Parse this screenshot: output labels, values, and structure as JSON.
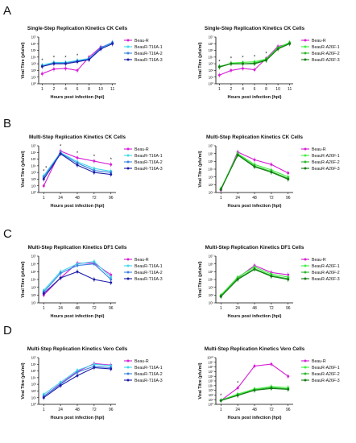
{
  "figure": {
    "panel_letters": [
      "A",
      "B",
      "C",
      "D"
    ]
  },
  "colors": {
    "beau_r": "#d61fd6",
    "t16a_1": "#3fd8ec",
    "t16a_2": "#3a84e0",
    "t16a_3": "#1c1ca8",
    "a26f_1": "#3ef03e",
    "a26f_2": "#27b827",
    "a26f_3": "#147a14"
  },
  "chart_data": [
    {
      "type": "line",
      "panel": "A",
      "side": "left",
      "title": "Single-Step Replication Kinetics CK Cells",
      "xlabel": "Hours post infection (hpi)",
      "ylabel": "Viral Titre (pfu/ml)",
      "categories": [
        "1",
        "2",
        "4",
        "6",
        "8",
        "10",
        "11"
      ],
      "log_scale": true,
      "ylim": [
        0,
        7
      ],
      "y_tick_labels": [
        "10⁰",
        "10¹",
        "10²",
        "10³",
        "10⁴",
        "10⁵",
        "10⁶",
        "10⁷"
      ],
      "annotation_markers": [
        "*",
        "*",
        "*",
        "*"
      ],
      "series": [
        {
          "name": "Beau-R",
          "color_key": "beau_r",
          "values": [
            1.5,
            2.2,
            2.3,
            2.0,
            4.0,
            5.5,
            6.0
          ]
        },
        {
          "name": "BeauR-T16A-1",
          "color_key": "t16a_1",
          "values": [
            2.8,
            3.2,
            3.2,
            3.5,
            3.8,
            5.3,
            6.1
          ]
        },
        {
          "name": "BeauR-T16A-2",
          "color_key": "t16a_2",
          "values": [
            2.6,
            3.1,
            3.1,
            3.4,
            3.7,
            5.4,
            6.2
          ]
        },
        {
          "name": "BeauR-T16A-3",
          "color_key": "t16a_3",
          "values": [
            2.6,
            3.0,
            3.0,
            3.3,
            3.6,
            5.2,
            6.0
          ]
        }
      ]
    },
    {
      "type": "line",
      "panel": "A",
      "side": "right",
      "title": "Single-Step Replication Kinetics CK Cells",
      "xlabel": "Hours post infection (hpi)",
      "ylabel": "Viral Titre (pfu/ml)",
      "categories": [
        "1",
        "2",
        "4",
        "6",
        "8",
        "10",
        "11"
      ],
      "log_scale": true,
      "ylim": [
        0,
        7
      ],
      "y_tick_labels": [
        "10⁰",
        "10¹",
        "10²",
        "10³",
        "10⁴",
        "10⁵",
        "10⁶",
        "10⁷"
      ],
      "annotation_markers": [
        "*",
        "*",
        "*",
        "*",
        "*"
      ],
      "series": [
        {
          "name": "Beau-R",
          "color_key": "beau_r",
          "values": [
            1.3,
            2.0,
            2.3,
            2.1,
            3.8,
            5.6,
            6.0
          ]
        },
        {
          "name": "BeauR-A26F-1",
          "color_key": "a26f_1",
          "values": [
            2.5,
            3.1,
            3.2,
            3.3,
            3.7,
            5.4,
            6.2
          ]
        },
        {
          "name": "BeauR-A26F-2",
          "color_key": "a26f_2",
          "values": [
            2.6,
            3.0,
            3.0,
            3.1,
            3.6,
            5.3,
            6.1
          ]
        },
        {
          "name": "BeauR-A26F-3",
          "color_key": "a26f_3",
          "values": [
            2.5,
            3.0,
            3.0,
            3.0,
            3.5,
            5.2,
            6.0
          ]
        }
      ]
    },
    {
      "type": "line",
      "panel": "B",
      "side": "left",
      "title": "Multi-Step Replication Kinetics CK Cells",
      "xlabel": "Hours post infection (hpi)",
      "ylabel": "Viral Titre (pfu/ml)",
      "categories": [
        "1",
        "24",
        "48",
        "72",
        "96"
      ],
      "log_scale": true,
      "ylim": [
        0,
        7
      ],
      "y_tick_labels": [
        "10⁰",
        "10¹",
        "10²",
        "10³",
        "10⁴",
        "10⁵",
        "10⁶",
        "10⁷"
      ],
      "annotation_markers": [
        "*",
        "*",
        "*",
        "*",
        "*",
        "*"
      ],
      "series": [
        {
          "name": "Beau-R",
          "color_key": "beau_r",
          "values": [
            1.0,
            6.2,
            5.2,
            4.7,
            4.2
          ]
        },
        {
          "name": "BeauR-T16A-1",
          "color_key": "t16a_1",
          "values": [
            2.5,
            6.0,
            4.6,
            3.6,
            3.2
          ]
        },
        {
          "name": "BeauR-T16A-2",
          "color_key": "t16a_2",
          "values": [
            2.3,
            5.9,
            4.4,
            3.3,
            3.0
          ]
        },
        {
          "name": "BeauR-T16A-3",
          "color_key": "t16a_3",
          "values": [
            2.0,
            5.8,
            4.1,
            3.0,
            2.7
          ]
        }
      ]
    },
    {
      "type": "line",
      "panel": "B",
      "side": "right",
      "title": "Multi-Step Replication Kinetics CK Cells",
      "xlabel": "Hours post infection (hpi)",
      "ylabel": "Viral Titre (pfu/ml)",
      "categories": [
        "1",
        "24",
        "48",
        "72",
        "96"
      ],
      "log_scale": true,
      "ylim": [
        1,
        7
      ],
      "y_tick_labels": [
        "10¹",
        "10²",
        "10³",
        "10⁴",
        "10⁵",
        "10⁶",
        "10⁷"
      ],
      "annotation_markers": [],
      "series": [
        {
          "name": "Beau-R",
          "color_key": "beau_r",
          "values": [
            1.3,
            6.2,
            5.2,
            4.6,
            3.5
          ]
        },
        {
          "name": "BeauR-A26F-1",
          "color_key": "a26f_1",
          "values": [
            1.5,
            6.0,
            4.6,
            3.9,
            3.0
          ]
        },
        {
          "name": "BeauR-A26F-2",
          "color_key": "a26f_2",
          "values": [
            1.4,
            5.9,
            4.4,
            3.7,
            2.8
          ]
        },
        {
          "name": "BeauR-A26F-3",
          "color_key": "a26f_3",
          "values": [
            1.4,
            5.8,
            4.3,
            3.6,
            2.7
          ]
        }
      ]
    },
    {
      "type": "line",
      "panel": "C",
      "side": "left",
      "title": "Multi-Step Replication Kinetics DF1 Cells",
      "xlabel": "Hours post infection (hpi)",
      "ylabel": "Viral Titre (pfu/ml)",
      "categories": [
        "1",
        "24",
        "48",
        "72",
        "96"
      ],
      "log_scale": true,
      "ylim": [
        1,
        7
      ],
      "y_tick_labels": [
        "10¹",
        "10²",
        "10³",
        "10⁴",
        "10⁵",
        "10⁶",
        "10⁷"
      ],
      "annotation_markers": [],
      "series": [
        {
          "name": "Beau-R",
          "color_key": "beau_r",
          "values": [
            2.0,
            4.2,
            6.1,
            6.1,
            4.6
          ]
        },
        {
          "name": "BeauR-T16A-1",
          "color_key": "t16a_1",
          "values": [
            2.6,
            5.0,
            6.0,
            6.3,
            4.3
          ]
        },
        {
          "name": "BeauR-T16A-2",
          "color_key": "t16a_2",
          "values": [
            2.4,
            4.8,
            5.8,
            6.0,
            4.0
          ]
        },
        {
          "name": "BeauR-T16A-3",
          "color_key": "t16a_3",
          "values": [
            2.2,
            4.2,
            5.0,
            4.0,
            3.6
          ]
        }
      ]
    },
    {
      "type": "line",
      "panel": "C",
      "side": "right",
      "title": "Multi-Step Replication Kinetics DF1 Cells",
      "xlabel": "Hours post infection (hpi)",
      "ylabel": "Viral Titre (pfu/ml)",
      "categories": [
        "1",
        "24",
        "48",
        "72",
        "96"
      ],
      "log_scale": true,
      "ylim": [
        1,
        7
      ],
      "y_tick_labels": [
        "10¹",
        "10²",
        "10³",
        "10⁴",
        "10⁵",
        "10⁶",
        "10⁷"
      ],
      "annotation_markers": [],
      "series": [
        {
          "name": "Beau-R",
          "color_key": "beau_r",
          "values": [
            1.8,
            4.2,
            5.8,
            4.9,
            4.6
          ]
        },
        {
          "name": "BeauR-A26F-1",
          "color_key": "a26f_1",
          "values": [
            2.0,
            4.3,
            5.6,
            4.7,
            4.3
          ]
        },
        {
          "name": "BeauR-A26F-2",
          "color_key": "a26f_2",
          "values": [
            1.9,
            4.1,
            5.4,
            4.5,
            4.1
          ]
        },
        {
          "name": "BeauR-A26F-3",
          "color_key": "a26f_3",
          "values": [
            1.8,
            4.0,
            5.3,
            4.4,
            4.0
          ]
        }
      ]
    },
    {
      "type": "line",
      "panel": "D",
      "side": "left",
      "title": "Multi-Step Replication Kinetics Vero Cells",
      "xlabel": "Hours post infection (hpi)",
      "ylabel": "Viral Titre (pfu/ml)",
      "categories": [
        "1",
        "24",
        "48",
        "72",
        "96"
      ],
      "log_scale": true,
      "ylim": [
        0,
        7
      ],
      "y_tick_labels": [
        "10⁰",
        "10¹",
        "10²",
        "10³",
        "10⁴",
        "10⁵",
        "10⁶",
        "10⁷"
      ],
      "annotation_markers": [],
      "series": [
        {
          "name": "Beau-R",
          "color_key": "beau_r",
          "values": [
            1.2,
            3.1,
            4.9,
            6.1,
            5.9
          ]
        },
        {
          "name": "BeauR-T16A-1",
          "color_key": "t16a_1",
          "values": [
            1.5,
            3.3,
            5.1,
            6.0,
            5.8
          ]
        },
        {
          "name": "BeauR-T16A-2",
          "color_key": "t16a_2",
          "values": [
            1.2,
            3.0,
            4.8,
            5.7,
            5.5
          ]
        },
        {
          "name": "BeauR-T16A-3",
          "color_key": "t16a_3",
          "values": [
            1.0,
            2.8,
            4.3,
            5.5,
            5.3
          ]
        }
      ]
    },
    {
      "type": "line",
      "panel": "D",
      "side": "right",
      "title": "Multi-Step Replication Kinetics Vero Cells",
      "xlabel": "Hours post infection (hpi)",
      "ylabel": "Viral Titre (pfu/ml)",
      "categories": [
        "1",
        "24",
        "48",
        "72",
        "96"
      ],
      "log_scale": true,
      "ylim": [
        0,
        10
      ],
      "y_tick_labels": [
        "10⁰",
        "10¹",
        "10²",
        "10³",
        "10⁴",
        "10⁵",
        "10⁶",
        "10⁷",
        "10⁸",
        "10⁹",
        "10¹⁰"
      ],
      "annotation_markers": [
        "*",
        "*"
      ],
      "series": [
        {
          "name": "Beau-R",
          "color_key": "beau_r",
          "values": [
            0.8,
            3.5,
            8.2,
            8.6,
            6.0
          ]
        },
        {
          "name": "BeauR-A26F-1",
          "color_key": "a26f_1",
          "values": [
            0.9,
            2.2,
            3.3,
            3.8,
            3.6
          ]
        },
        {
          "name": "BeauR-A26F-2",
          "color_key": "a26f_2",
          "values": [
            0.8,
            2.0,
            3.1,
            3.6,
            3.3
          ]
        },
        {
          "name": "BeauR-A26F-3",
          "color_key": "a26f_3",
          "values": [
            0.8,
            1.9,
            3.0,
            3.4,
            3.2
          ]
        }
      ]
    }
  ]
}
